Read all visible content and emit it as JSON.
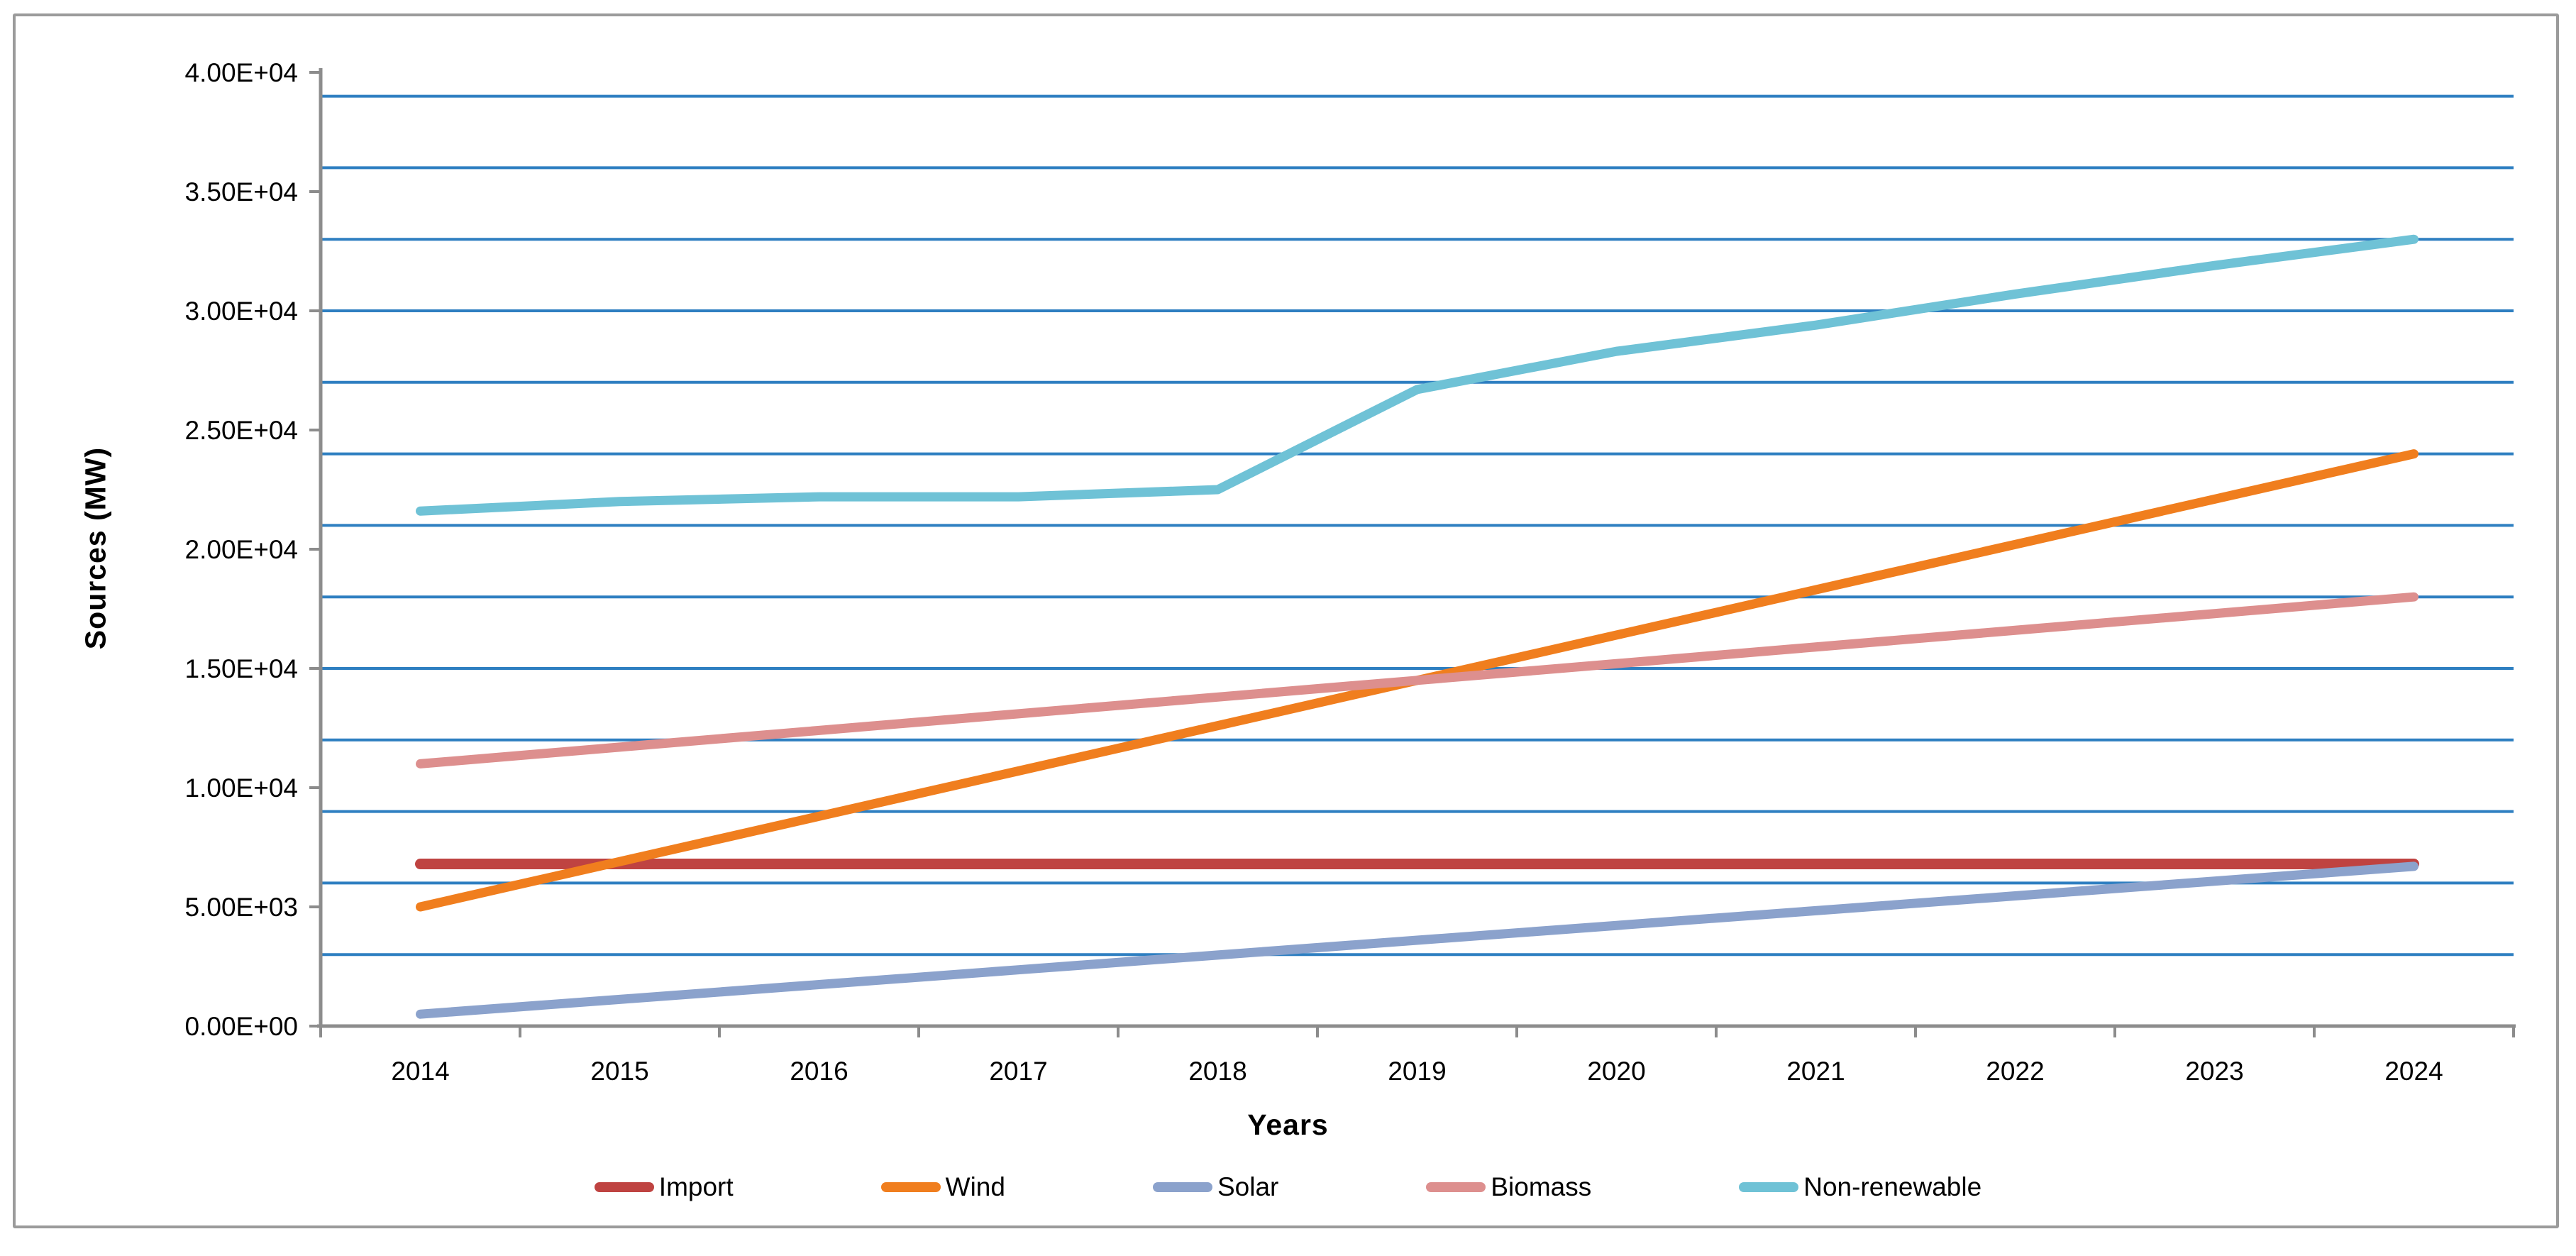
{
  "chart_data": {
    "type": "line",
    "title": "",
    "xlabel": "Years",
    "ylabel": "Sources (MW)",
    "categories": [
      "2014",
      "2015",
      "2016",
      "2017",
      "2018",
      "2019",
      "2020",
      "2021",
      "2022",
      "2023",
      "2024"
    ],
    "y_axis": {
      "min": 0,
      "max": 40000,
      "label_step": 5000,
      "gridline_step": 3000,
      "tick_labels": [
        "0.00E+00",
        "5.00E+03",
        "1.00E+04",
        "1.50E+04",
        "2.00E+04",
        "2.50E+04",
        "3.00E+04",
        "3.50E+04",
        "4.00E+04"
      ]
    },
    "grid_on": true,
    "legend_position": "bottom",
    "gridline_color": "#2e7fc1",
    "axis_color": "#8c8c8c",
    "series": [
      {
        "name": "Import",
        "color": "#bf4341",
        "values": [
          6800,
          6800,
          6800,
          6800,
          6800,
          6800,
          6800,
          6800,
          6800,
          6800,
          6800
        ]
      },
      {
        "name": "Wind",
        "color": "#f07e1e",
        "values": [
          5000,
          6900,
          8800,
          10700,
          12600,
          14500,
          16400,
          18300,
          20200,
          22100,
          24000
        ]
      },
      {
        "name": "Solar",
        "color": "#8ba2cc",
        "values": [
          500,
          1120,
          1740,
          2360,
          2980,
          3600,
          4220,
          4840,
          5460,
          6080,
          6700
        ]
      },
      {
        "name": "Biomass",
        "color": "#dd8f8e",
        "values": [
          11000,
          11700,
          12400,
          13100,
          13800,
          14500,
          15200,
          15900,
          16600,
          17300,
          18000
        ]
      },
      {
        "name": "Non-renewable",
        "color": "#6fc2d6",
        "values": [
          21600,
          22000,
          22200,
          22200,
          22500,
          26700,
          28300,
          29400,
          30700,
          31900,
          33000
        ]
      }
    ]
  }
}
